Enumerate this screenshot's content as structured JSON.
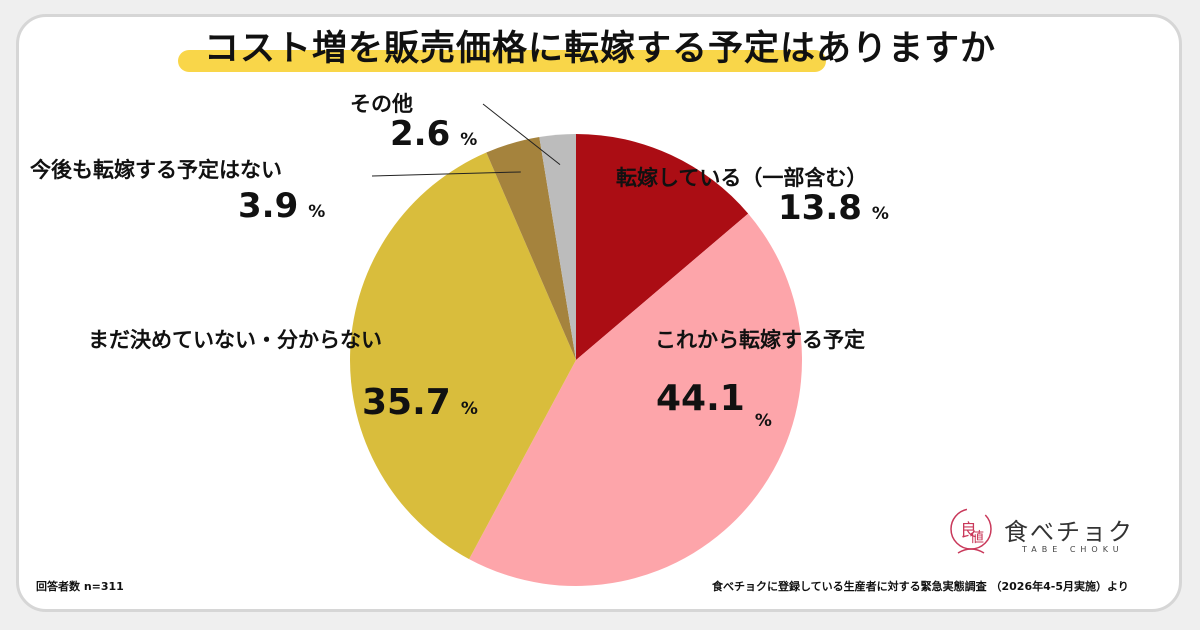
{
  "title": "コスト増を販売価格に転嫁する予定はありますか",
  "chart_data": {
    "type": "pie",
    "title": "コスト増を販売価格に転嫁する予定はありますか",
    "unit": "%",
    "slices": [
      {
        "label": "転嫁している（一部含む）",
        "value": 13.8,
        "color": "#ab0d14"
      },
      {
        "label": "これから転嫁する予定",
        "value": 44.1,
        "color": "#fda5aa"
      },
      {
        "label": "まだ決めていない・分からない",
        "value": 35.7,
        "color": "#d9bd3c"
      },
      {
        "label": "今後も転嫁する予定はない",
        "value": 3.9,
        "color": "#a5833d"
      },
      {
        "label": "その他",
        "value": 2.6,
        "color": "#bcbcbc"
      }
    ]
  },
  "labels": {
    "s0_name": "転嫁している（一部含む）",
    "s0_value": "13.8",
    "s1_name": "これから転嫁する予定",
    "s1_value": "44.1",
    "s2_name": "まだ決めていない・分からない",
    "s2_value": "35.7",
    "s3_name": "今後も転嫁する予定はない",
    "s3_value": "3.9",
    "s4_name": "その他",
    "s4_value": "2.6",
    "unit": "%"
  },
  "footer": {
    "respondents": "回答者数 n=311",
    "source": "食べチョクに登録している生産者に対する緊急実態調査 （2026年4-5月実施）より"
  },
  "logo": {
    "name": "食べチョク",
    "sub": "TABE CHOKU",
    "icon": "tabechoku-logo-icon",
    "color": "#c9385a"
  }
}
